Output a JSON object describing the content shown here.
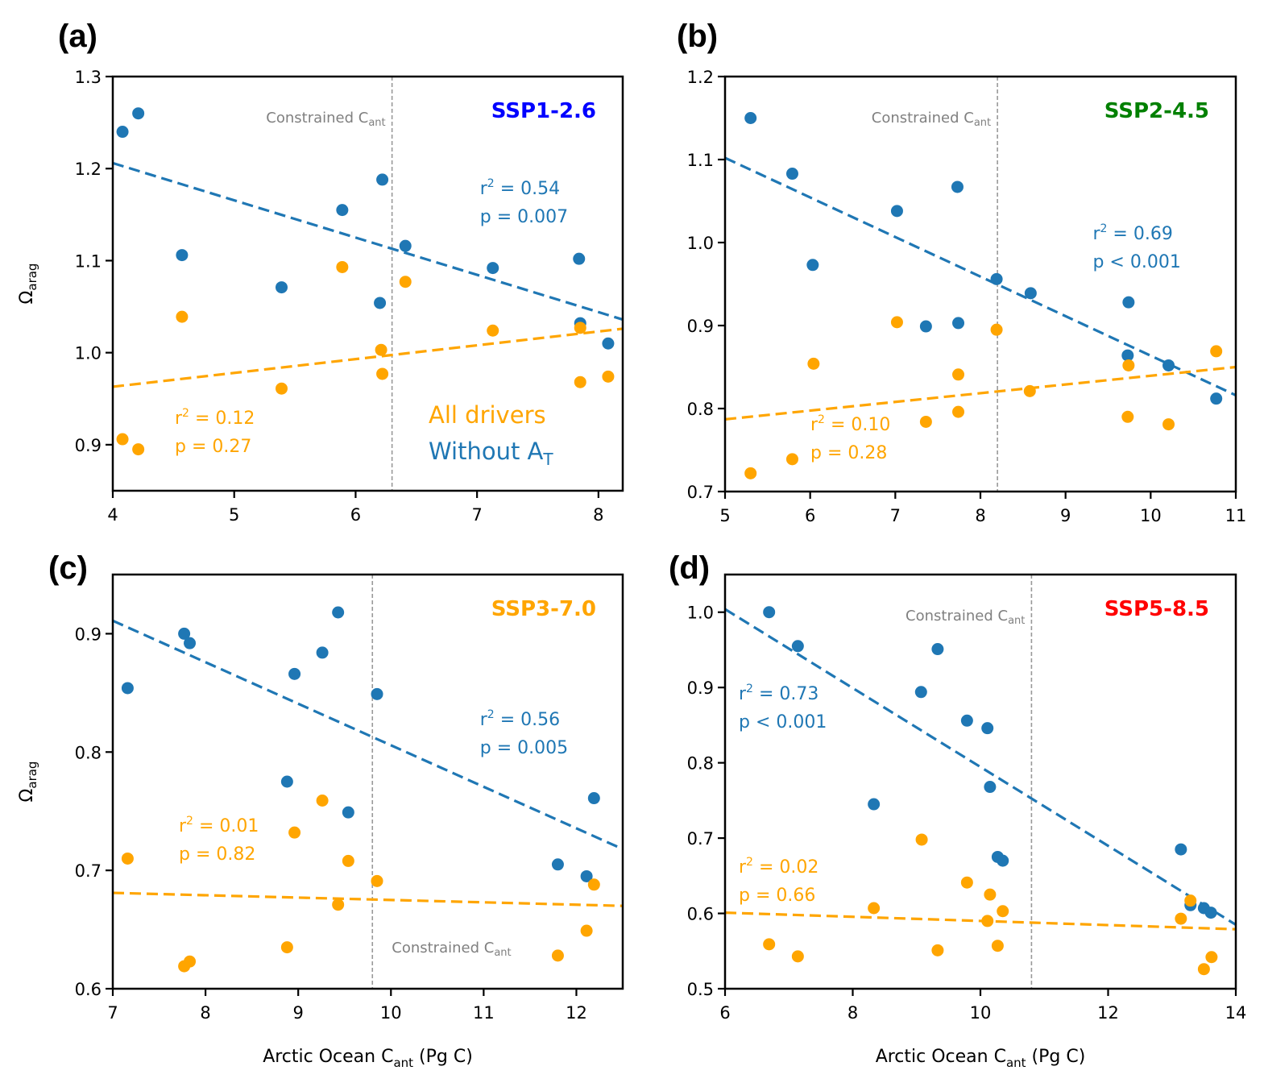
{
  "colors": {
    "without_at": "#1f77b4",
    "all_drivers": "#ffa500",
    "constraint_line": "#999999",
    "constraint_text": "#808080"
  },
  "legend": {
    "all_drivers": "All drivers",
    "without_at_prefix": "Without A",
    "without_at_sub": "T"
  },
  "constrained_label": {
    "main": "Constrained C",
    "sub": "ant"
  },
  "xlabel": {
    "main": "Arctic Ocean C",
    "sub": "ant",
    "suffix": " (Pg C)"
  },
  "ylabel": {
    "main": "Ω",
    "sub": "arag"
  },
  "chart_data": [
    {
      "panel": "(a)",
      "type": "scatter",
      "title": "SSP1-2.6",
      "title_color": "#0000ff",
      "xlabel": "",
      "ylabel": "Ωarag",
      "xlim": [
        4,
        8.2
      ],
      "ylim": [
        0.85,
        1.3
      ],
      "xticks": [
        4,
        5,
        6,
        7,
        8
      ],
      "yticks": [
        0.9,
        1.0,
        1.1,
        1.2,
        1.3
      ],
      "ytick_decimals": 1,
      "constrained_cant": 6.3,
      "constrained_label_pos": "top",
      "series": [
        {
          "name": "Without AT",
          "color": "#1f77b4",
          "x": [
            4.08,
            4.21,
            4.57,
            5.39,
            5.89,
            6.22,
            6.2,
            6.41,
            7.13,
            7.84,
            7.85,
            8.08
          ],
          "y": [
            1.24,
            1.26,
            1.106,
            1.071,
            1.155,
            1.188,
            1.054,
            1.116,
            1.092,
            1.102,
            1.032,
            1.01
          ],
          "fit": {
            "x": [
              4,
              8.2
            ],
            "y": [
              1.206,
              1.036
            ]
          },
          "r2": "0.54",
          "p_label": "p  = 0.007",
          "stat_pos": "upper-right"
        },
        {
          "name": "All drivers",
          "color": "#ffa500",
          "x": [
            4.08,
            4.21,
            4.57,
            5.39,
            5.89,
            6.21,
            6.22,
            6.41,
            7.13,
            7.85,
            7.85,
            8.08
          ],
          "y": [
            0.906,
            0.895,
            1.039,
            0.961,
            1.093,
            1.003,
            0.977,
            1.077,
            1.024,
            1.027,
            0.968,
            0.974
          ],
          "fit": {
            "x": [
              4,
              8.2
            ],
            "y": [
              0.963,
              1.026
            ]
          },
          "r2": "0.12",
          "p_label": "p  = 0.27",
          "stat_pos": "lower-left"
        }
      ],
      "show_legend": true
    },
    {
      "panel": "(b)",
      "type": "scatter",
      "title": "SSP2-4.5",
      "title_color": "#008000",
      "xlabel": "",
      "ylabel": "",
      "xlim": [
        5,
        11
      ],
      "ylim": [
        0.7,
        1.2
      ],
      "xticks": [
        5,
        6,
        7,
        8,
        9,
        10,
        11
      ],
      "yticks": [
        0.7,
        0.8,
        0.9,
        1.0,
        1.1,
        1.2
      ],
      "ytick_decimals": 1,
      "constrained_cant": 8.2,
      "constrained_label_pos": "top",
      "series": [
        {
          "name": "Without AT",
          "color": "#1f77b4",
          "x": [
            5.3,
            5.79,
            6.03,
            7.02,
            7.36,
            7.73,
            7.74,
            8.19,
            8.59,
            9.74,
            9.73,
            10.21,
            10.77
          ],
          "y": [
            1.15,
            1.083,
            0.973,
            1.038,
            0.899,
            1.067,
            0.903,
            0.956,
            0.939,
            0.928,
            0.864,
            0.852,
            0.812
          ],
          "fit": {
            "x": [
              5,
              11
            ],
            "y": [
              1.102,
              0.816
            ]
          },
          "r2": "0.69",
          "p_label": "p  < 0.001",
          "stat_pos": "upper-right"
        },
        {
          "name": "All drivers",
          "color": "#ffa500",
          "x": [
            5.3,
            5.79,
            6.04,
            7.02,
            7.36,
            7.74,
            7.74,
            8.19,
            8.58,
            9.74,
            9.73,
            10.21,
            10.77
          ],
          "y": [
            0.722,
            0.739,
            0.854,
            0.904,
            0.784,
            0.841,
            0.796,
            0.895,
            0.821,
            0.852,
            0.79,
            0.781,
            0.869
          ],
          "fit": {
            "x": [
              5,
              11
            ],
            "y": [
              0.787,
              0.85
            ]
          },
          "r2": "0.10",
          "p_label": "p  = 0.28",
          "stat_pos": "lower-left"
        }
      ],
      "show_legend": false
    },
    {
      "panel": "(c)",
      "type": "scatter",
      "title": "SSP3-7.0",
      "title_color": "#ffa500",
      "xlabel": "Arctic Ocean Cant (Pg C)",
      "ylabel": "Ωarag",
      "xlim": [
        7,
        12.5
      ],
      "ylim": [
        0.6,
        0.95
      ],
      "xticks": [
        7,
        8,
        9,
        10,
        11,
        12
      ],
      "yticks": [
        0.6,
        0.7,
        0.8,
        0.9
      ],
      "ytick_decimals": 1,
      "constrained_cant": 9.8,
      "constrained_label_pos": "bottom",
      "series": [
        {
          "name": "Without AT",
          "color": "#1f77b4",
          "x": [
            7.16,
            7.77,
            7.83,
            8.96,
            9.26,
            9.43,
            9.85,
            8.88,
            9.54,
            11.8,
            12.11,
            12.19
          ],
          "y": [
            0.854,
            0.9,
            0.892,
            0.866,
            0.884,
            0.918,
            0.849,
            0.775,
            0.749,
            0.705,
            0.695,
            0.761
          ],
          "fit": {
            "x": [
              7,
              12.5
            ],
            "y": [
              0.911,
              0.718
            ]
          },
          "r2": "0.56",
          "p_label": "p  = 0.005",
          "stat_pos": "upper-right"
        },
        {
          "name": "All drivers",
          "color": "#ffa500",
          "x": [
            7.16,
            7.77,
            7.83,
            8.88,
            8.96,
            9.26,
            9.43,
            9.54,
            9.85,
            11.8,
            12.11,
            12.19
          ],
          "y": [
            0.71,
            0.619,
            0.623,
            0.635,
            0.732,
            0.759,
            0.671,
            0.708,
            0.691,
            0.628,
            0.649,
            0.688
          ],
          "fit": {
            "x": [
              7,
              12.5
            ],
            "y": [
              0.681,
              0.67
            ]
          },
          "r2": "0.01",
          "p_label": "p  = 0.82",
          "stat_pos": "mid-left"
        }
      ],
      "show_legend": false
    },
    {
      "panel": "(d)",
      "type": "scatter",
      "title": "SSP5-8.5",
      "title_color": "#ff0000",
      "xlabel": "Arctic Ocean Cant (Pg C)",
      "ylabel": "",
      "xlim": [
        6,
        14
      ],
      "ylim": [
        0.5,
        1.05
      ],
      "xticks": [
        6,
        8,
        10,
        12,
        14
      ],
      "yticks": [
        0.5,
        0.6,
        0.7,
        0.8,
        0.9,
        1.0
      ],
      "ytick_decimals": 1,
      "constrained_cant": 10.8,
      "constrained_label_pos": "top",
      "series": [
        {
          "name": "Without AT",
          "color": "#1f77b4",
          "x": [
            6.69,
            7.14,
            9.33,
            9.07,
            9.79,
            10.11,
            10.15,
            8.33,
            10.27,
            10.35,
            13.14,
            13.29,
            13.5,
            13.61
          ],
          "y": [
            1.0,
            0.955,
            0.951,
            0.894,
            0.856,
            0.846,
            0.768,
            0.745,
            0.675,
            0.67,
            0.685,
            0.611,
            0.607,
            0.601
          ],
          "fit": {
            "x": [
              6,
              14
            ],
            "y": [
              1.004,
              0.585
            ]
          },
          "r2": "0.73",
          "p_label": "p  < 0.001",
          "stat_pos": "upper-left"
        },
        {
          "name": "All drivers",
          "color": "#ffa500",
          "x": [
            6.69,
            7.14,
            8.33,
            9.08,
            9.33,
            9.79,
            10.11,
            10.15,
            10.27,
            10.35,
            13.14,
            13.29,
            13.5,
            13.62
          ],
          "y": [
            0.559,
            0.543,
            0.607,
            0.698,
            0.551,
            0.641,
            0.59,
            0.625,
            0.557,
            0.603,
            0.593,
            0.617,
            0.526,
            0.542
          ],
          "fit": {
            "x": [
              6,
              14
            ],
            "y": [
              0.601,
              0.579
            ]
          },
          "r2": "0.02",
          "p_label": "p  = 0.66",
          "stat_pos": "mid-left"
        }
      ],
      "show_legend": false
    }
  ]
}
